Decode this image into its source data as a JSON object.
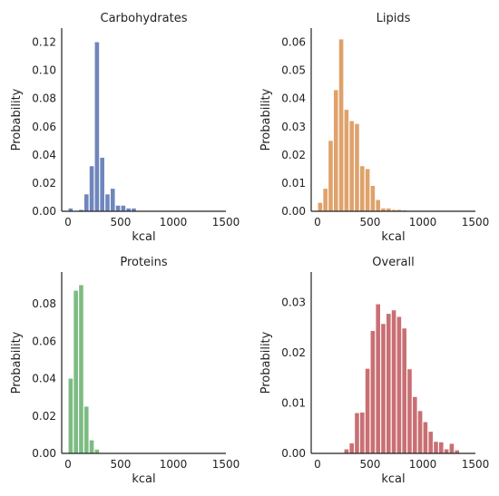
{
  "chart_data": [
    {
      "type": "bar",
      "title": "Carbohydrates",
      "xlabel": "kcal",
      "ylabel": "Probability",
      "color": "#6f86bd",
      "xlim": [
        -60,
        1500
      ],
      "ylim": [
        0,
        0.13
      ],
      "xticks": [
        0,
        500,
        1000,
        1500
      ],
      "yticks": [
        "0.00",
        "0.02",
        "0.04",
        "0.06",
        "0.08",
        "0.10",
        "0.12"
      ],
      "bin_width": 50,
      "bins": [
        {
          "x0": 0,
          "value": 0.002
        },
        {
          "x0": 100,
          "value": 0.001
        },
        {
          "x0": 150,
          "value": 0.012
        },
        {
          "x0": 200,
          "value": 0.032
        },
        {
          "x0": 250,
          "value": 0.12
        },
        {
          "x0": 300,
          "value": 0.038
        },
        {
          "x0": 350,
          "value": 0.012
        },
        {
          "x0": 400,
          "value": 0.016
        },
        {
          "x0": 450,
          "value": 0.004
        },
        {
          "x0": 500,
          "value": 0.004
        },
        {
          "x0": 550,
          "value": 0.002
        },
        {
          "x0": 600,
          "value": 0.002
        }
      ]
    },
    {
      "type": "bar",
      "title": "Lipids",
      "xlabel": "kcal",
      "ylabel": "Probability",
      "color": "#dfa26b",
      "xlim": [
        -60,
        1500
      ],
      "ylim": [
        0,
        0.065
      ],
      "xticks": [
        0,
        500,
        1000,
        1500
      ],
      "yticks": [
        "0.00",
        "0.01",
        "0.02",
        "0.03",
        "0.04",
        "0.05",
        "0.06"
      ],
      "bin_width": 50,
      "bins": [
        {
          "x0": 0,
          "value": 0.003
        },
        {
          "x0": 50,
          "value": 0.008
        },
        {
          "x0": 100,
          "value": 0.025
        },
        {
          "x0": 150,
          "value": 0.043
        },
        {
          "x0": 200,
          "value": 0.061
        },
        {
          "x0": 250,
          "value": 0.036
        },
        {
          "x0": 300,
          "value": 0.032
        },
        {
          "x0": 350,
          "value": 0.031
        },
        {
          "x0": 400,
          "value": 0.016
        },
        {
          "x0": 450,
          "value": 0.015
        },
        {
          "x0": 500,
          "value": 0.009
        },
        {
          "x0": 550,
          "value": 0.004
        },
        {
          "x0": 600,
          "value": 0.001
        },
        {
          "x0": 650,
          "value": 0.001
        },
        {
          "x0": 700,
          "value": 0.0005
        },
        {
          "x0": 750,
          "value": 0.0005
        },
        {
          "x0": 800,
          "value": 0.0003
        }
      ]
    },
    {
      "type": "bar",
      "title": "Proteins",
      "xlabel": "kcal",
      "ylabel": "Probability",
      "color": "#7cbc83",
      "xlim": [
        -60,
        1500
      ],
      "ylim": [
        0,
        0.097
      ],
      "xticks": [
        0,
        500,
        1000,
        1500
      ],
      "yticks": [
        "0.00",
        "0.02",
        "0.04",
        "0.06",
        "0.08"
      ],
      "bin_width": 50,
      "bins": [
        {
          "x0": 0,
          "value": 0.04
        },
        {
          "x0": 50,
          "value": 0.087
        },
        {
          "x0": 100,
          "value": 0.09
        },
        {
          "x0": 150,
          "value": 0.025
        },
        {
          "x0": 200,
          "value": 0.007
        },
        {
          "x0": 250,
          "value": 0.002
        }
      ]
    },
    {
      "type": "bar",
      "title": "Overall",
      "xlabel": "kcal",
      "ylabel": "Probability",
      "color": "#c96f73",
      "xlim": [
        -60,
        1500
      ],
      "ylim": [
        0,
        0.036
      ],
      "xticks": [
        0,
        500,
        1000,
        1500
      ],
      "yticks": [
        "0.00",
        "0.01",
        "0.02",
        "0.03"
      ],
      "bin_width": 50,
      "bins": [
        {
          "x0": 250,
          "value": 0.0008
        },
        {
          "x0": 300,
          "value": 0.002
        },
        {
          "x0": 350,
          "value": 0.008
        },
        {
          "x0": 400,
          "value": 0.0081
        },
        {
          "x0": 450,
          "value": 0.0168
        },
        {
          "x0": 500,
          "value": 0.0243
        },
        {
          "x0": 550,
          "value": 0.0296
        },
        {
          "x0": 600,
          "value": 0.0257
        },
        {
          "x0": 650,
          "value": 0.0277
        },
        {
          "x0": 700,
          "value": 0.0284
        },
        {
          "x0": 750,
          "value": 0.0271
        },
        {
          "x0": 800,
          "value": 0.0248
        },
        {
          "x0": 850,
          "value": 0.0167
        },
        {
          "x0": 900,
          "value": 0.0112
        },
        {
          "x0": 950,
          "value": 0.0084
        },
        {
          "x0": 1000,
          "value": 0.0062
        },
        {
          "x0": 1050,
          "value": 0.0043
        },
        {
          "x0": 1100,
          "value": 0.0023
        },
        {
          "x0": 1150,
          "value": 0.0022
        },
        {
          "x0": 1200,
          "value": 0.0008
        },
        {
          "x0": 1250,
          "value": 0.0019
        },
        {
          "x0": 1300,
          "value": 0.0006
        }
      ]
    }
  ]
}
